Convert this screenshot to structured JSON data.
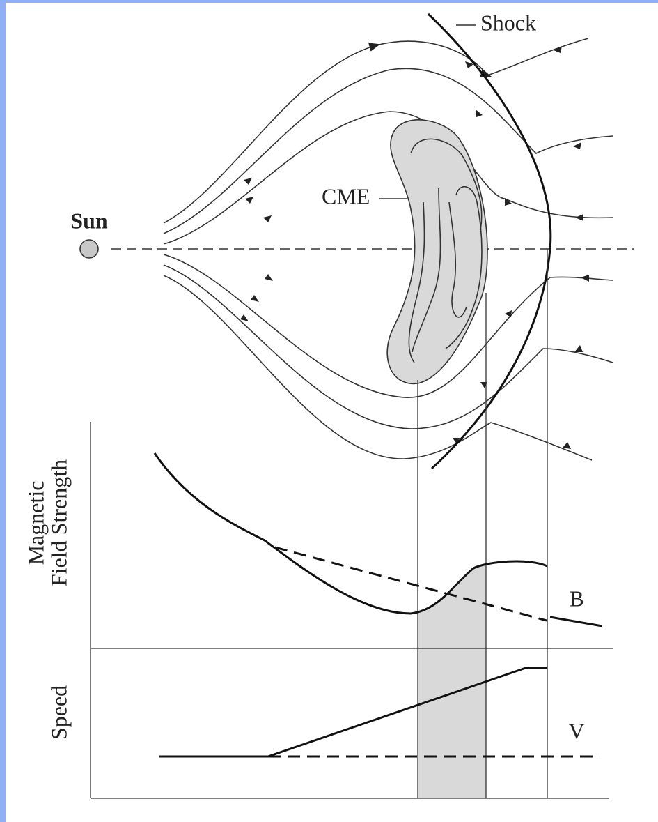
{
  "diagram": {
    "labels": {
      "shock": "Shock",
      "cme": "CME",
      "sun": "Sun"
    },
    "axis_labels": {
      "magnetic_field": [
        "Magnetic",
        "Field Strength"
      ],
      "speed": "Speed"
    },
    "curve_labels": {
      "b": "B",
      "v": "V"
    }
  }
}
